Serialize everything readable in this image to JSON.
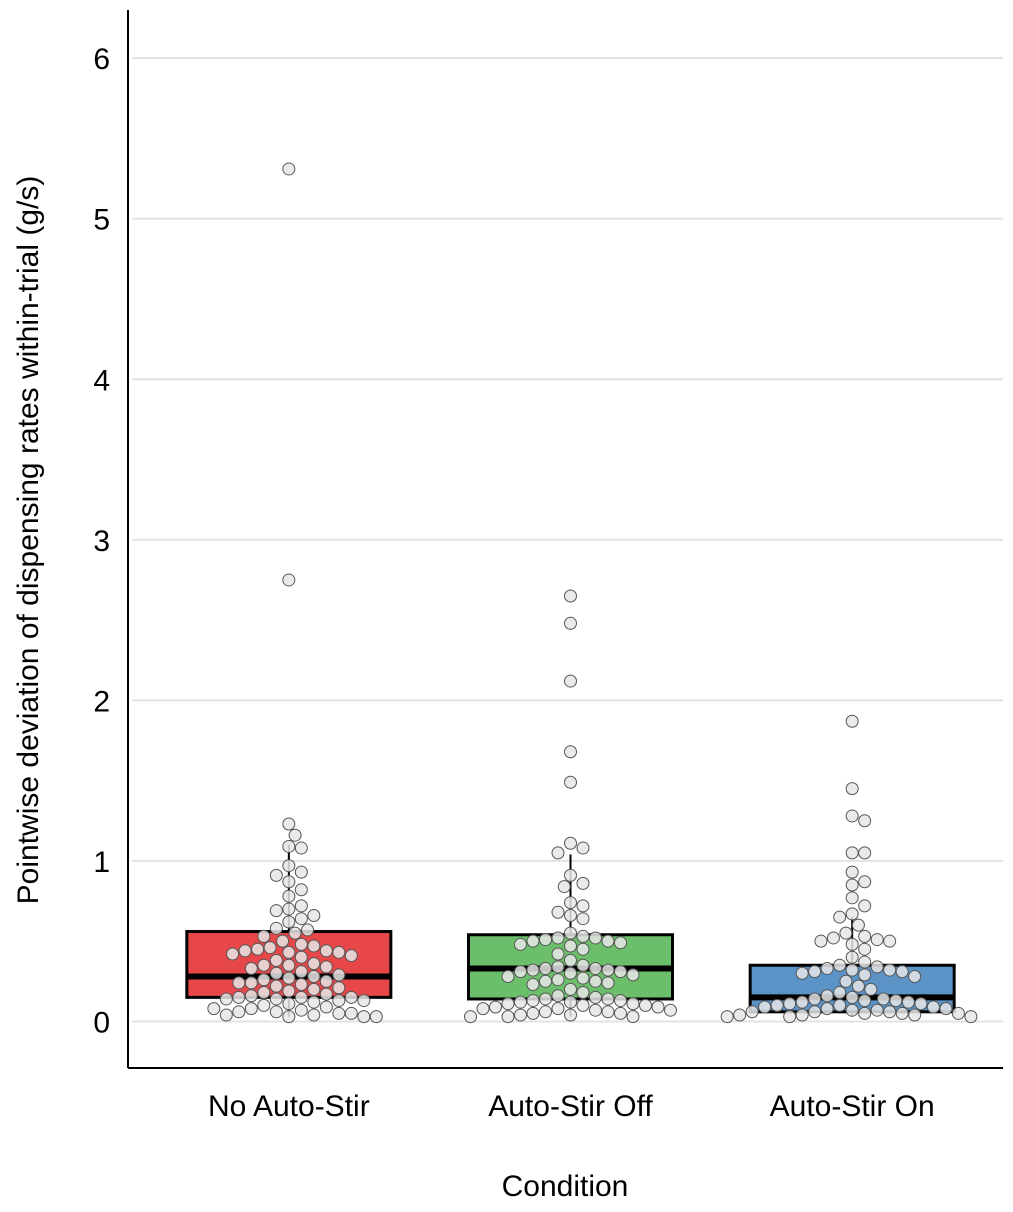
{
  "chart_data": {
    "type": "box",
    "x_label": "Condition",
    "y_label": "Pointwise deviation of dispensing rates within-trial (g/s)",
    "categories": [
      "No Auto-Stir",
      "Auto-Stir Off",
      "Auto-Stir On"
    ],
    "ylim": [
      -0.29,
      6.3
    ],
    "yticks": [
      0,
      1,
      2,
      3,
      4,
      5,
      6
    ],
    "grid": true,
    "boxes": [
      {
        "color": "#e8474a",
        "whisker_low": 0.03,
        "q1": 0.15,
        "median": 0.28,
        "q3": 0.56,
        "whisker_high": 1.1,
        "points": [
          5.31,
          2.75,
          1.23,
          1.16,
          1.09,
          1.08,
          0.97,
          0.93,
          0.91,
          0.87,
          0.82,
          0.78,
          0.72,
          0.7,
          0.69,
          0.66,
          0.64,
          0.62,
          0.58,
          0.57,
          0.55,
          0.53,
          0.5,
          0.48,
          0.47,
          0.46,
          0.45,
          0.44,
          0.44,
          0.43,
          0.43,
          0.42,
          0.41,
          0.4,
          0.38,
          0.36,
          0.35,
          0.35,
          0.34,
          0.33,
          0.31,
          0.3,
          0.29,
          0.28,
          0.27,
          0.26,
          0.25,
          0.24,
          0.24,
          0.23,
          0.22,
          0.21,
          0.2,
          0.19,
          0.18,
          0.17,
          0.16,
          0.15,
          0.15,
          0.15,
          0.14,
          0.14,
          0.13,
          0.13,
          0.12,
          0.11,
          0.1,
          0.09,
          0.08,
          0.08,
          0.07,
          0.06,
          0.06,
          0.05,
          0.05,
          0.04,
          0.04,
          0.03,
          0.03,
          0.03
        ]
      },
      {
        "color": "#6bbf6a",
        "whisker_low": 0.03,
        "q1": 0.14,
        "median": 0.33,
        "q3": 0.54,
        "whisker_high": 1.04,
        "points": [
          2.65,
          2.48,
          2.12,
          1.68,
          1.49,
          1.11,
          1.08,
          1.05,
          0.91,
          0.86,
          0.84,
          0.74,
          0.72,
          0.68,
          0.66,
          0.64,
          0.55,
          0.53,
          0.52,
          0.52,
          0.51,
          0.5,
          0.5,
          0.49,
          0.48,
          0.47,
          0.45,
          0.42,
          0.38,
          0.35,
          0.34,
          0.33,
          0.33,
          0.32,
          0.32,
          0.31,
          0.31,
          0.3,
          0.29,
          0.28,
          0.27,
          0.26,
          0.25,
          0.25,
          0.24,
          0.23,
          0.2,
          0.18,
          0.16,
          0.15,
          0.14,
          0.14,
          0.13,
          0.13,
          0.12,
          0.12,
          0.11,
          0.11,
          0.1,
          0.1,
          0.09,
          0.09,
          0.08,
          0.08,
          0.07,
          0.07,
          0.06,
          0.06,
          0.05,
          0.05,
          0.04,
          0.04,
          0.03,
          0.03,
          0.03
        ]
      },
      {
        "color": "#5b93c7",
        "whisker_low": 0.03,
        "q1": 0.06,
        "median": 0.15,
        "q3": 0.35,
        "whisker_high": 0.65,
        "points": [
          1.87,
          1.45,
          1.28,
          1.25,
          1.05,
          1.05,
          0.93,
          0.87,
          0.85,
          0.77,
          0.72,
          0.67,
          0.65,
          0.6,
          0.55,
          0.53,
          0.52,
          0.51,
          0.5,
          0.5,
          0.48,
          0.45,
          0.4,
          0.37,
          0.35,
          0.34,
          0.33,
          0.32,
          0.32,
          0.31,
          0.31,
          0.3,
          0.29,
          0.28,
          0.25,
          0.22,
          0.2,
          0.18,
          0.16,
          0.15,
          0.14,
          0.14,
          0.13,
          0.13,
          0.12,
          0.12,
          0.11,
          0.11,
          0.1,
          0.1,
          0.09,
          0.09,
          0.08,
          0.08,
          0.07,
          0.07,
          0.06,
          0.06,
          0.06,
          0.05,
          0.05,
          0.05,
          0.04,
          0.04,
          0.04,
          0.03,
          0.03,
          0.03
        ]
      }
    ]
  }
}
